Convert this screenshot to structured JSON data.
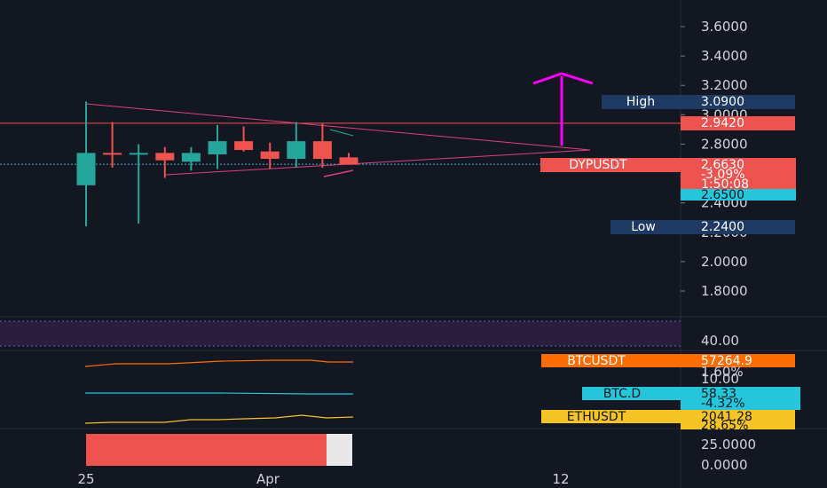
{
  "chart_data": {
    "type": "candlestick",
    "symbol": "DYPUSDT",
    "x_ticks": [
      "25",
      "Apr",
      "12"
    ],
    "y_ticks": [
      "3.6000",
      "3.4000",
      "3.2000",
      "3.0000",
      "2.8000",
      "2.6000",
      "2.4000",
      "2.2000",
      "2.0000",
      "1.8000"
    ],
    "ylim": [
      1.6,
      3.7
    ],
    "candles": [
      {
        "o": 2.52,
        "h": 3.09,
        "l": 2.24,
        "c": 2.74
      },
      {
        "o": 2.74,
        "h": 2.95,
        "l": 2.64,
        "c": 2.73
      },
      {
        "o": 2.73,
        "h": 2.8,
        "l": 2.26,
        "c": 2.74
      },
      {
        "o": 2.74,
        "h": 2.78,
        "l": 2.57,
        "c": 2.69
      },
      {
        "o": 2.68,
        "h": 2.78,
        "l": 2.62,
        "c": 2.74
      },
      {
        "o": 2.73,
        "h": 2.93,
        "l": 2.63,
        "c": 2.82
      },
      {
        "o": 2.82,
        "h": 2.92,
        "l": 2.75,
        "c": 2.76
      },
      {
        "o": 2.75,
        "h": 2.81,
        "l": 2.63,
        "c": 2.7
      },
      {
        "o": 2.7,
        "h": 2.95,
        "l": 2.64,
        "c": 2.82
      },
      {
        "o": 2.82,
        "h": 2.94,
        "l": 2.64,
        "c": 2.7
      },
      {
        "o": 2.71,
        "h": 2.74,
        "l": 2.66,
        "c": 2.66
      }
    ],
    "resistance_level": 2.942,
    "last_price": 2.663,
    "high": {
      "label": "High",
      "value": "3.0900"
    },
    "low": {
      "label": "Low",
      "value": "2.2400"
    },
    "price_tags": {
      "resistance": "2.9420",
      "symbol_label": "DYPUSDT",
      "price": "2.6630",
      "change": "-3.09%",
      "countdown": "1:50:08",
      "level2": "2.6500"
    },
    "rsi": {
      "tick": "40.00"
    },
    "comparisons": [
      {
        "name": "BTCUSDT",
        "value": "57264.9",
        "sub": "1.60%",
        "color": "#ff6d00"
      },
      {
        "name": "BTC.D",
        "value": "58.33",
        "sub": "-4.32%",
        "color": "#26c6da"
      },
      {
        "name": "ETHUSDT",
        "value": "2041.28",
        "sub": "28.65%",
        "color": "#f5c324"
      }
    ],
    "comparison_scale_tick": "10.00",
    "lower_pane_ticks": [
      "25.0000",
      "0.0000"
    ],
    "colors": {
      "up": "#26a69a",
      "down": "#ef5350",
      "arrow": "#ff00ff",
      "pattern": "#e0407b"
    }
  }
}
